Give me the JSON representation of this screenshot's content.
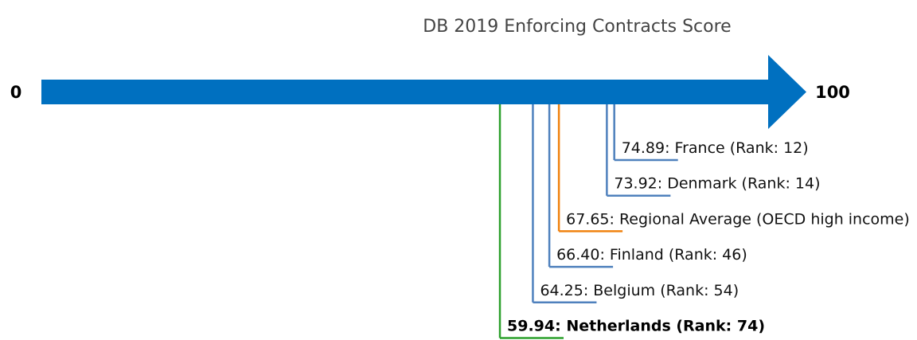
{
  "chart_data": {
    "type": "annotated-scale",
    "title": "DB 2019 Enforcing Contracts Score",
    "scale": {
      "min": 0,
      "max": 100,
      "min_label": "0",
      "max_label": "100"
    },
    "arrow_color": "#0070C0",
    "entries": [
      {
        "value": 74.89,
        "label": "74.89: France (Rank: 12)",
        "color": "#4F81BD",
        "highlight": false
      },
      {
        "value": 73.92,
        "label": "73.92: Denmark (Rank: 14)",
        "color": "#4F81BD",
        "highlight": false
      },
      {
        "value": 67.65,
        "label": "67.65: Regional Average (OECD high income)",
        "color": "#F0820F",
        "highlight": false
      },
      {
        "value": 66.4,
        "label": "66.40: Finland (Rank: 46)",
        "color": "#4F81BD",
        "highlight": false
      },
      {
        "value": 64.25,
        "label": "64.25: Belgium (Rank: 54)",
        "color": "#4F81BD",
        "highlight": false
      },
      {
        "value": 59.94,
        "label": "59.94: Netherlands (Rank: 74)",
        "color": "#2CA02C",
        "highlight": true
      }
    ]
  }
}
